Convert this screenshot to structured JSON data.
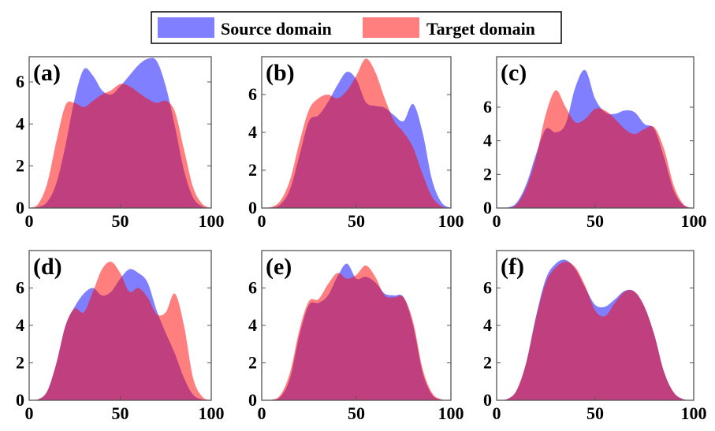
{
  "chart_data": {
    "type": "area",
    "legend": {
      "placement": "top-center",
      "entries": [
        {
          "name": "Source domain",
          "color": "#0000ff"
        },
        {
          "name": "Target domain",
          "color": "#ff0000"
        }
      ]
    },
    "fill_opacity": 0.5,
    "x": [
      0,
      5,
      10,
      15,
      20,
      25,
      30,
      35,
      40,
      45,
      50,
      55,
      60,
      65,
      70,
      75,
      80,
      85,
      90,
      95,
      100
    ],
    "xlim": [
      0,
      100
    ],
    "xticks": [
      0,
      50,
      100
    ],
    "panels": [
      {
        "label": "(a)",
        "ylim": [
          0,
          7.2
        ],
        "yticks": [
          0,
          2,
          4,
          6
        ],
        "source": [
          0,
          0.05,
          0.3,
          1.2,
          3.0,
          5.2,
          6.6,
          6.3,
          5.6,
          5.4,
          5.8,
          6.3,
          6.8,
          7.1,
          7.0,
          5.8,
          3.9,
          1.8,
          0.5,
          0.08,
          0
        ],
        "target": [
          0,
          0.2,
          1.2,
          3.2,
          4.9,
          5.0,
          4.8,
          5.1,
          5.4,
          5.6,
          5.9,
          5.8,
          5.5,
          5.2,
          5.0,
          5.1,
          4.6,
          2.8,
          1.0,
          0.2,
          0
        ]
      },
      {
        "label": "(b)",
        "ylim": [
          0,
          8
        ],
        "yticks": [
          0,
          2,
          4,
          6
        ],
        "source": [
          0,
          0.02,
          0.2,
          1.0,
          2.8,
          4.6,
          4.9,
          5.6,
          6.5,
          7.2,
          6.8,
          5.6,
          5.4,
          5.3,
          4.9,
          4.6,
          5.5,
          4.0,
          1.5,
          0.3,
          0
        ],
        "target": [
          0,
          0.05,
          0.4,
          1.5,
          3.5,
          5.2,
          5.8,
          6.0,
          5.8,
          6.2,
          7.0,
          7.9,
          7.2,
          5.8,
          4.6,
          4.0,
          3.2,
          1.8,
          0.6,
          0.1,
          0
        ]
      },
      {
        "label": "(c)",
        "ylim": [
          0,
          9
        ],
        "yticks": [
          0,
          2,
          4,
          6
        ],
        "source": [
          0,
          0.02,
          0.3,
          1.4,
          3.2,
          4.7,
          4.5,
          5.0,
          7.2,
          8.2,
          6.5,
          5.7,
          5.6,
          5.8,
          5.7,
          5.0,
          4.7,
          3.0,
          1.0,
          0.15,
          0
        ],
        "target": [
          0,
          0.01,
          0.2,
          1.2,
          3.0,
          5.6,
          7.0,
          6.0,
          5.1,
          5.3,
          5.9,
          5.8,
          5.3,
          4.7,
          4.4,
          4.7,
          4.8,
          3.5,
          1.3,
          0.2,
          0
        ]
      },
      {
        "label": "(d)",
        "ylim": [
          0,
          8
        ],
        "yticks": [
          0,
          2,
          4,
          6
        ],
        "source": [
          0,
          0.05,
          0.5,
          2.0,
          4.0,
          5.0,
          5.7,
          6.0,
          5.6,
          5.8,
          6.5,
          7.0,
          6.8,
          6.3,
          4.8,
          3.6,
          2.5,
          1.2,
          0.3,
          0.05,
          0
        ],
        "target": [
          0,
          0.05,
          0.5,
          2.0,
          4.0,
          4.9,
          4.7,
          5.8,
          7.0,
          7.4,
          6.8,
          5.8,
          6.0,
          5.5,
          4.6,
          4.7,
          5.7,
          4.0,
          1.2,
          0.2,
          0
        ]
      },
      {
        "label": "(e)",
        "ylim": [
          0,
          8
        ],
        "yticks": [
          0,
          2,
          4,
          6
        ],
        "source": [
          0,
          0.02,
          0.2,
          1.2,
          3.5,
          5.1,
          5.2,
          5.6,
          6.6,
          7.3,
          6.5,
          6.6,
          6.3,
          5.7,
          5.6,
          5.5,
          4.0,
          1.5,
          0.3,
          0.03,
          0
        ],
        "target": [
          0,
          0.02,
          0.3,
          1.5,
          3.8,
          5.3,
          5.4,
          6.2,
          6.8,
          6.5,
          6.7,
          7.2,
          6.6,
          5.6,
          5.5,
          5.5,
          4.2,
          1.7,
          0.4,
          0.05,
          0
        ]
      },
      {
        "label": "(f)",
        "ylim": [
          0,
          8
        ],
        "yticks": [
          0,
          2,
          4,
          6
        ],
        "source": [
          0,
          0.05,
          0.5,
          2.0,
          4.5,
          6.5,
          7.3,
          7.5,
          7.0,
          6.0,
          5.1,
          5.0,
          5.4,
          5.85,
          5.8,
          5.0,
          3.5,
          1.5,
          0.4,
          0.05,
          0
        ],
        "target": [
          0,
          0.05,
          0.5,
          2.0,
          4.4,
          6.3,
          7.1,
          7.4,
          7.1,
          6.1,
          4.8,
          4.5,
          5.2,
          5.8,
          5.8,
          5.0,
          3.5,
          1.5,
          0.4,
          0.05,
          0
        ]
      }
    ]
  }
}
